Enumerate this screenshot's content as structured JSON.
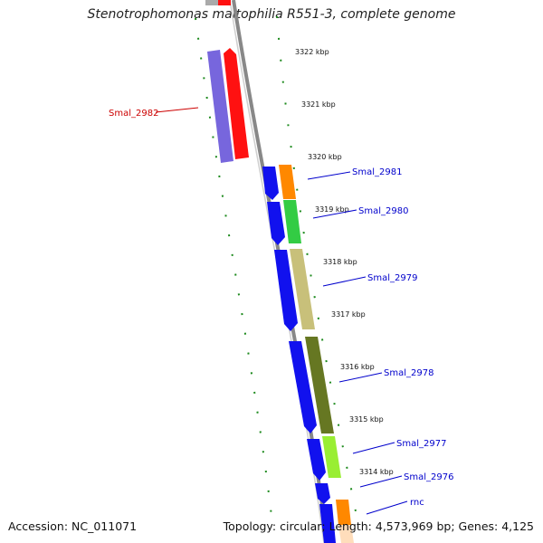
{
  "title": "Stenotrophomonas maltophilia R551-3, complete genome",
  "accession": "Accession: NC_011071",
  "summary": "Topology: circular; Length: 4,573,969 bp; Genes: 4,125",
  "colors": {
    "backbone": "#888888",
    "tick_green": "#2e8b2e",
    "label_blue": "#0000cc",
    "label_red": "#cc0000"
  },
  "ticks": [
    "3322 kbp",
    "3321 kbp",
    "3320 kbp",
    "3319 kbp",
    "3318 kbp",
    "3317 kbp",
    "3316 kbp",
    "3315 kbp",
    "3314 kbp"
  ],
  "genes": [
    {
      "name": "Smal_2982",
      "color": "red"
    },
    {
      "name": "Smal_2981",
      "color": "blue"
    },
    {
      "name": "Smal_2980",
      "color": "blue"
    },
    {
      "name": "Smal_2979",
      "color": "blue"
    },
    {
      "name": "Smal_2978",
      "color": "blue"
    },
    {
      "name": "Smal_2977",
      "color": "blue"
    },
    {
      "name": "Smal_2976",
      "color": "blue"
    },
    {
      "name": "rnc",
      "color": "blue"
    }
  ]
}
